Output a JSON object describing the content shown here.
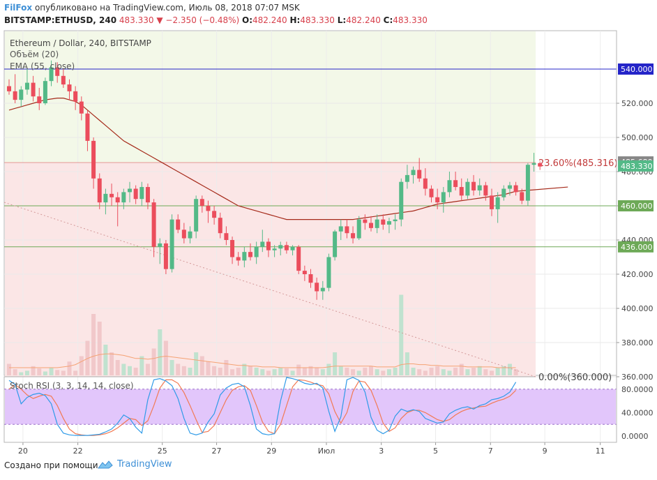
{
  "header": {
    "brand": "FilFox",
    "published": "опубликовано на TradingView.com, Июль 08, 2018 07:07 MSK",
    "symbol": "BITSTAMP:ETHUSD, 240",
    "last": "483.330",
    "change": "−2.350 (−0.48%)",
    "o_label": "O:",
    "o": "482.240",
    "h_label": "H:",
    "h": "483.330",
    "l_label": "L:",
    "l": "482.240",
    "c_label": "C:",
    "c": "483.330"
  },
  "legend": {
    "title": "Ethereum / Dollar, 240, BITSTAMP",
    "volume": "Объём (20)",
    "ema": "EMA (55, close)",
    "stoch": "Stoch RSI (3, 3, 14, 14, close)"
  },
  "colors": {
    "up": "#53b987",
    "down": "#eb4d5c",
    "ema": "#a52a1a",
    "hline_blue": "#2424c8",
    "hline_green": "#6da957",
    "fib_upper_bg": "#f3f8e8",
    "fib_lower_bg": "#fbe6e6",
    "stoch_band": "#e2c6fb",
    "stoch_k": "#2f9be8",
    "stoch_d": "#f27a54"
  },
  "chart_data": {
    "type": "candlestick",
    "price_axis": {
      "ylim": [
        357,
        568
      ],
      "ticks": [
        360,
        380,
        400,
        420,
        440,
        460,
        480,
        500,
        520
      ]
    },
    "time_axis": {
      "ticks": [
        "20",
        "22",
        "25",
        "27",
        "29",
        "Июл",
        "3",
        "5",
        "7",
        "9",
        "11"
      ]
    },
    "price_labels": [
      {
        "value": 540.0,
        "text": "540.000",
        "color": "#2424c8"
      },
      {
        "value": 485.68,
        "text": "485.680",
        "color": "#878787"
      },
      {
        "value": 483.33,
        "text": "483.330",
        "color": "#53b987"
      },
      {
        "value": 460.0,
        "text": "460.000",
        "color": "#6da957"
      },
      {
        "value": 436.0,
        "text": "436.000",
        "color": "#6da957"
      }
    ],
    "horizontal_lines": [
      540.0,
      460.0,
      436.0
    ],
    "fibonacci": [
      {
        "level": "23.60%",
        "price": 485.316,
        "text": "23.60%(485.316)"
      },
      {
        "level": "0.00%",
        "price": 360.0,
        "text": "0.00%(360.000)"
      }
    ],
    "candles": [
      [
        530,
        534,
        525,
        527
      ],
      [
        527,
        537,
        520,
        522
      ],
      [
        522,
        530,
        518,
        528
      ],
      [
        528,
        540,
        525,
        532
      ],
      [
        532,
        536,
        521,
        524
      ],
      [
        524,
        529,
        516,
        520
      ],
      [
        520,
        535,
        519,
        533
      ],
      [
        533,
        545,
        530,
        541
      ],
      [
        541,
        544,
        532,
        536
      ],
      [
        536,
        540,
        529,
        531
      ],
      [
        531,
        534,
        522,
        527
      ],
      [
        527,
        530,
        516,
        521
      ],
      [
        521,
        524,
        510,
        514
      ],
      [
        514,
        516,
        492,
        498
      ],
      [
        498,
        500,
        470,
        476
      ],
      [
        476,
        479,
        458,
        462
      ],
      [
        462,
        470,
        455,
        467
      ],
      [
        467,
        473,
        460,
        465
      ],
      [
        465,
        468,
        448,
        462
      ],
      [
        462,
        470,
        458,
        468
      ],
      [
        468,
        474,
        462,
        470
      ],
      [
        470,
        472,
        461,
        464
      ],
      [
        464,
        474,
        460,
        471
      ],
      [
        471,
        473,
        458,
        462
      ],
      [
        462,
        464,
        430,
        436
      ],
      [
        436,
        441,
        426,
        438
      ],
      [
        438,
        440,
        420,
        423
      ],
      [
        423,
        455,
        421,
        452
      ],
      [
        452,
        455,
        444,
        446
      ],
      [
        446,
        450,
        438,
        441
      ],
      [
        441,
        448,
        438,
        445
      ],
      [
        445,
        466,
        441,
        464
      ],
      [
        464,
        466,
        456,
        460
      ],
      [
        460,
        463,
        450,
        457
      ],
      [
        457,
        460,
        449,
        453
      ],
      [
        453,
        456,
        441,
        444
      ],
      [
        444,
        448,
        437,
        440
      ],
      [
        440,
        442,
        426,
        430
      ],
      [
        430,
        433,
        425,
        428
      ],
      [
        428,
        436,
        424,
        433
      ],
      [
        433,
        438,
        428,
        430
      ],
      [
        430,
        439,
        426,
        436
      ],
      [
        436,
        446,
        433,
        439
      ],
      [
        439,
        441,
        430,
        434
      ],
      [
        434,
        437,
        430,
        435
      ],
      [
        435,
        439,
        431,
        437
      ],
      [
        437,
        439,
        432,
        434
      ],
      [
        434,
        437,
        431,
        436
      ],
      [
        436,
        437,
        420,
        422
      ],
      [
        422,
        425,
        416,
        420
      ],
      [
        420,
        423,
        412,
        415
      ],
      [
        415,
        418,
        405,
        410
      ],
      [
        410,
        416,
        405,
        412
      ],
      [
        412,
        432,
        410,
        430
      ],
      [
        430,
        446,
        428,
        445
      ],
      [
        445,
        452,
        440,
        448
      ],
      [
        448,
        452,
        441,
        444
      ],
      [
        444,
        448,
        438,
        441
      ],
      [
        441,
        454,
        440,
        452
      ],
      [
        452,
        455,
        446,
        450
      ],
      [
        450,
        454,
        445,
        447
      ],
      [
        447,
        455,
        444,
        452
      ],
      [
        452,
        455,
        446,
        449
      ],
      [
        449,
        453,
        444,
        451
      ],
      [
        451,
        455,
        446,
        452
      ],
      [
        452,
        476,
        448,
        474
      ],
      [
        474,
        484,
        470,
        478
      ],
      [
        478,
        483,
        473,
        481
      ],
      [
        481,
        488,
        474,
        476
      ],
      [
        476,
        482,
        466,
        470
      ],
      [
        470,
        472,
        462,
        465
      ],
      [
        465,
        470,
        458,
        462
      ],
      [
        462,
        471,
        456,
        468
      ],
      [
        468,
        480,
        465,
        475
      ],
      [
        475,
        480,
        469,
        471
      ],
      [
        471,
        476,
        463,
        466
      ],
      [
        466,
        476,
        464,
        474
      ],
      [
        474,
        478,
        466,
        469
      ],
      [
        469,
        476,
        466,
        472
      ],
      [
        472,
        474,
        463,
        466
      ],
      [
        466,
        470,
        454,
        458
      ],
      [
        458,
        468,
        450,
        465
      ],
      [
        465,
        472,
        463,
        470
      ],
      [
        470,
        474,
        466,
        472
      ],
      [
        472,
        474,
        466,
        468
      ],
      [
        468,
        470,
        461,
        463
      ],
      [
        463,
        485,
        460,
        484
      ],
      [
        484,
        491,
        480,
        485
      ],
      [
        485,
        486,
        481,
        483
      ]
    ],
    "ema": [
      516,
      517,
      518,
      519,
      520,
      521,
      522,
      522.5,
      523,
      523,
      522,
      521,
      519,
      516,
      513,
      510,
      507,
      504,
      501,
      498,
      496,
      494,
      492,
      490,
      488,
      486,
      484,
      482,
      480,
      478,
      476,
      474,
      472,
      470,
      468,
      466,
      464,
      462,
      460,
      459,
      458,
      457,
      456,
      455,
      454,
      453,
      452,
      452,
      452,
      452,
      452,
      452,
      452,
      452,
      452,
      452,
      452,
      452,
      452.5,
      453,
      453.5,
      454,
      454.5,
      455,
      455.5,
      456,
      456.5,
      457,
      458,
      459,
      460,
      461,
      461.5,
      462,
      462.5,
      463,
      463.5,
      464,
      464.5,
      465,
      465.5,
      466,
      466.5,
      467.5,
      468.5
    ],
    "ema_extension": [
      468.5,
      471
    ],
    "volume": [
      15,
      8,
      4,
      6,
      12,
      9,
      5,
      10,
      7,
      6,
      18,
      6,
      25,
      45,
      80,
      70,
      40,
      30,
      20,
      15,
      12,
      10,
      25,
      15,
      35,
      60,
      45,
      20,
      15,
      12,
      10,
      30,
      25,
      18,
      12,
      10,
      20,
      8,
      10,
      15,
      12,
      10,
      8,
      6,
      8,
      10,
      9,
      6,
      14,
      10,
      12,
      10,
      8,
      15,
      30,
      12,
      10,
      8,
      6,
      10,
      12,
      8,
      6,
      8,
      10,
      105,
      30,
      10,
      8,
      6,
      10,
      12,
      8,
      6,
      10,
      15,
      8,
      10,
      12,
      8,
      6,
      10,
      12,
      15,
      8
    ],
    "volume_ma": [
      10,
      10,
      10,
      10,
      10,
      10,
      10,
      10,
      10,
      11,
      12,
      14,
      18,
      22,
      25,
      27,
      28,
      28,
      27,
      26,
      24,
      22,
      22,
      21,
      22,
      24,
      25,
      24,
      23,
      22,
      21,
      20,
      19,
      18,
      17,
      16,
      15,
      14,
      13,
      13,
      12,
      12,
      11,
      11,
      11,
      10,
      10,
      10,
      10,
      10,
      10,
      10,
      10,
      11,
      12,
      12,
      12,
      12,
      12,
      12,
      12,
      11,
      11,
      11,
      11,
      14,
      15,
      15,
      14,
      14,
      13,
      13,
      12,
      12,
      12,
      12,
      11,
      11,
      11,
      11,
      11,
      10,
      10,
      10,
      10
    ],
    "stoch_rsi": {
      "ylim": [
        -5,
        105
      ],
      "ticks": [
        0,
        40,
        80
      ],
      "tick_labels": [
        "0.0000",
        "40.0000",
        "80.0000"
      ],
      "band": [
        20,
        80
      ],
      "k": [
        95,
        88,
        55,
        66,
        71,
        73,
        69,
        55,
        20,
        5,
        2,
        1,
        1,
        1,
        2,
        3,
        7,
        12,
        22,
        36,
        30,
        15,
        5,
        62,
        96,
        98,
        94,
        86,
        64,
        30,
        5,
        2,
        5,
        24,
        38,
        70,
        82,
        88,
        90,
        84,
        52,
        12,
        4,
        2,
        4,
        60,
        100,
        98,
        95,
        90,
        88,
        90,
        82,
        42,
        8,
        33,
        96,
        100,
        95,
        75,
        32,
        10,
        4,
        10,
        34,
        46,
        42,
        45,
        42,
        30,
        26,
        22,
        24,
        38,
        44,
        48,
        50,
        46,
        52,
        55,
        62,
        64,
        68,
        75,
        92
      ],
      "d": [
        80,
        88,
        80,
        70,
        64,
        68,
        71,
        68,
        52,
        30,
        12,
        4,
        2,
        1,
        1,
        2,
        4,
        8,
        14,
        22,
        30,
        28,
        18,
        26,
        52,
        82,
        96,
        96,
        90,
        74,
        52,
        28,
        6,
        8,
        18,
        40,
        62,
        78,
        84,
        86,
        78,
        52,
        24,
        8,
        4,
        20,
        52,
        84,
        96,
        95,
        92,
        88,
        86,
        72,
        42,
        22,
        40,
        76,
        94,
        92,
        78,
        52,
        22,
        8,
        14,
        30,
        40,
        44,
        44,
        40,
        34,
        28,
        25,
        28,
        36,
        42,
        46,
        48,
        50,
        51,
        56,
        60,
        63,
        68,
        78
      ]
    }
  },
  "footer": {
    "made_with": "Создано при помощи",
    "brand": "TradingView"
  }
}
